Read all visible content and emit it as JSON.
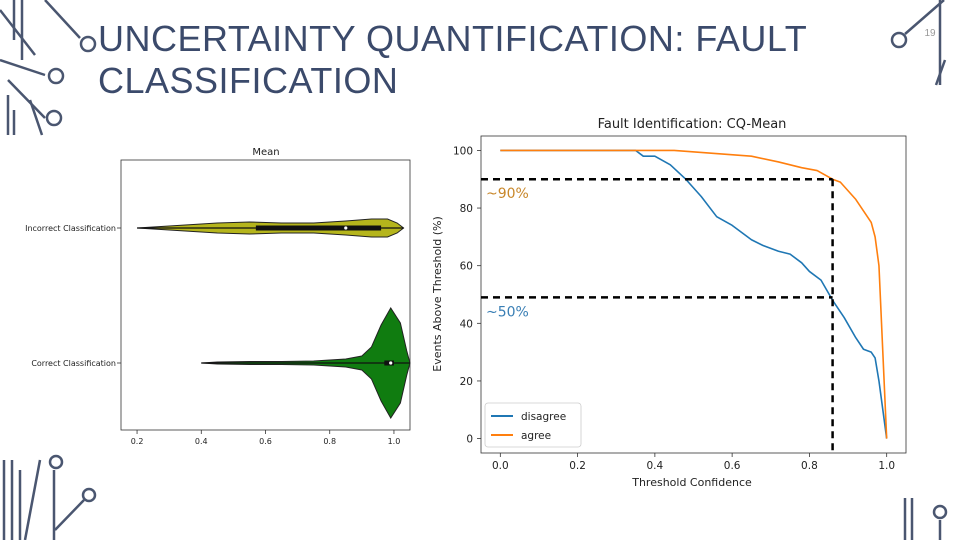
{
  "slide": {
    "title": "UNCERTAINTY QUANTIFICATION: FAULT CLASSIFICATION",
    "number": "19"
  },
  "colors": {
    "title": "#3b4a6b",
    "deco": "#4a5670",
    "disagree": "#1f77b4",
    "agree": "#ff7f0e",
    "violin_incorrect": "#b5b51c",
    "violin_correct": "#107c10"
  },
  "chart_data": [
    {
      "type": "violin",
      "title": "Mean",
      "categories": [
        "Incorrect Classification",
        "Correct Classification"
      ],
      "xlim": [
        0.15,
        1.05
      ],
      "xticks": [
        "0.2",
        "0.4",
        "0.6",
        "0.8",
        "1.0",
        "1."
      ],
      "series": [
        {
          "category": "Incorrect Classification",
          "min": 0.2,
          "q1": 0.57,
          "median": 0.85,
          "q3": 0.96,
          "max": 1.03
        },
        {
          "category": "Correct Classification",
          "min": 0.4,
          "q1": 0.97,
          "median": 0.99,
          "q3": 1.0,
          "max": 1.05
        }
      ]
    },
    {
      "type": "line",
      "title": "Fault Identification: CQ-Mean",
      "xlabel": "Threshold Confidence",
      "ylabel": "Events Above Threshold (%)",
      "xlim": [
        -0.05,
        1.05
      ],
      "ylim": [
        -5,
        105
      ],
      "xticks": [
        "0.0",
        "0.2",
        "0.4",
        "0.6",
        "0.8",
        "1.0"
      ],
      "yticks": [
        "0",
        "20",
        "40",
        "60",
        "80",
        "100"
      ],
      "legend": "lower-left",
      "series": [
        {
          "name": "disagree",
          "x": [
            0.0,
            0.35,
            0.37,
            0.4,
            0.44,
            0.48,
            0.52,
            0.56,
            0.6,
            0.63,
            0.65,
            0.68,
            0.7,
            0.72,
            0.75,
            0.78,
            0.8,
            0.83,
            0.86,
            0.89,
            0.92,
            0.94,
            0.96,
            0.97,
            0.98,
            0.99,
            1.0
          ],
          "y": [
            100,
            100,
            98,
            98,
            95,
            90,
            84,
            77,
            74,
            71,
            69,
            67,
            66,
            65,
            64,
            61,
            58,
            55,
            48,
            42,
            35,
            31,
            30,
            28,
            20,
            10,
            0
          ]
        },
        {
          "name": "agree",
          "x": [
            0.0,
            0.45,
            0.55,
            0.65,
            0.72,
            0.78,
            0.82,
            0.86,
            0.88,
            0.9,
            0.92,
            0.94,
            0.96,
            0.97,
            0.98,
            0.99,
            1.0
          ],
          "y": [
            100,
            100,
            99,
            98,
            96,
            94,
            93,
            90,
            89,
            86,
            83,
            79,
            75,
            70,
            60,
            30,
            0
          ]
        }
      ],
      "annotations": [
        {
          "text": "~90%",
          "y": 90,
          "x_end": 0.86
        },
        {
          "text": "~50%",
          "y": 49,
          "x_end": 0.86
        }
      ]
    }
  ]
}
